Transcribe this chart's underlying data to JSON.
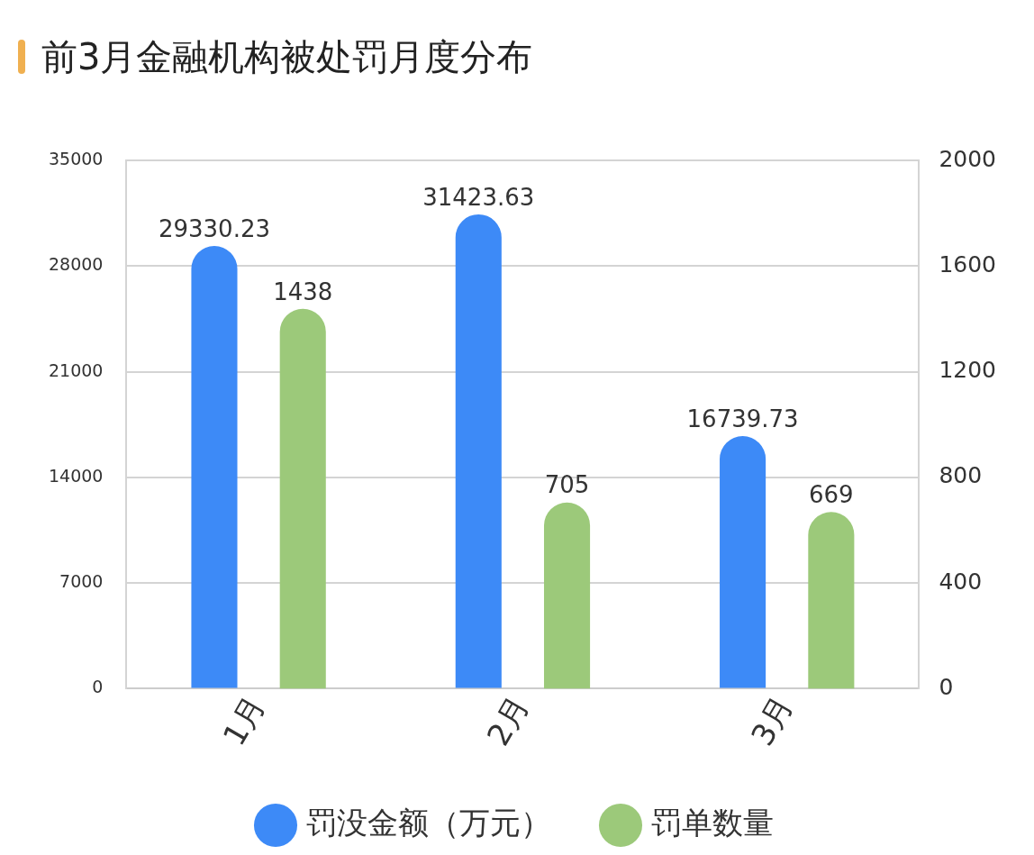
{
  "chart_data": {
    "type": "bar",
    "title": "前3月金融机构被处罚月度分布",
    "categories": [
      "1月",
      "2月",
      "3月"
    ],
    "series": [
      {
        "name": "罚没金额（万元）",
        "color": "#3d8af7",
        "values": [
          29330.23,
          31423.63,
          16739.73
        ]
      },
      {
        "name": "罚单数量",
        "color": "#9cc97a",
        "values": [
          1438,
          705,
          669
        ],
        "axis": "y2"
      }
    ],
    "ylim": [
      0,
      35000
    ],
    "yticks": [
      0,
      7000,
      14000,
      21000,
      28000,
      35000
    ],
    "y2lim": [
      0,
      2000
    ],
    "y2ticks": [
      0,
      400,
      800,
      1200,
      1600,
      2000
    ],
    "grid": "y",
    "legend": "bottom",
    "data_labels": true
  }
}
